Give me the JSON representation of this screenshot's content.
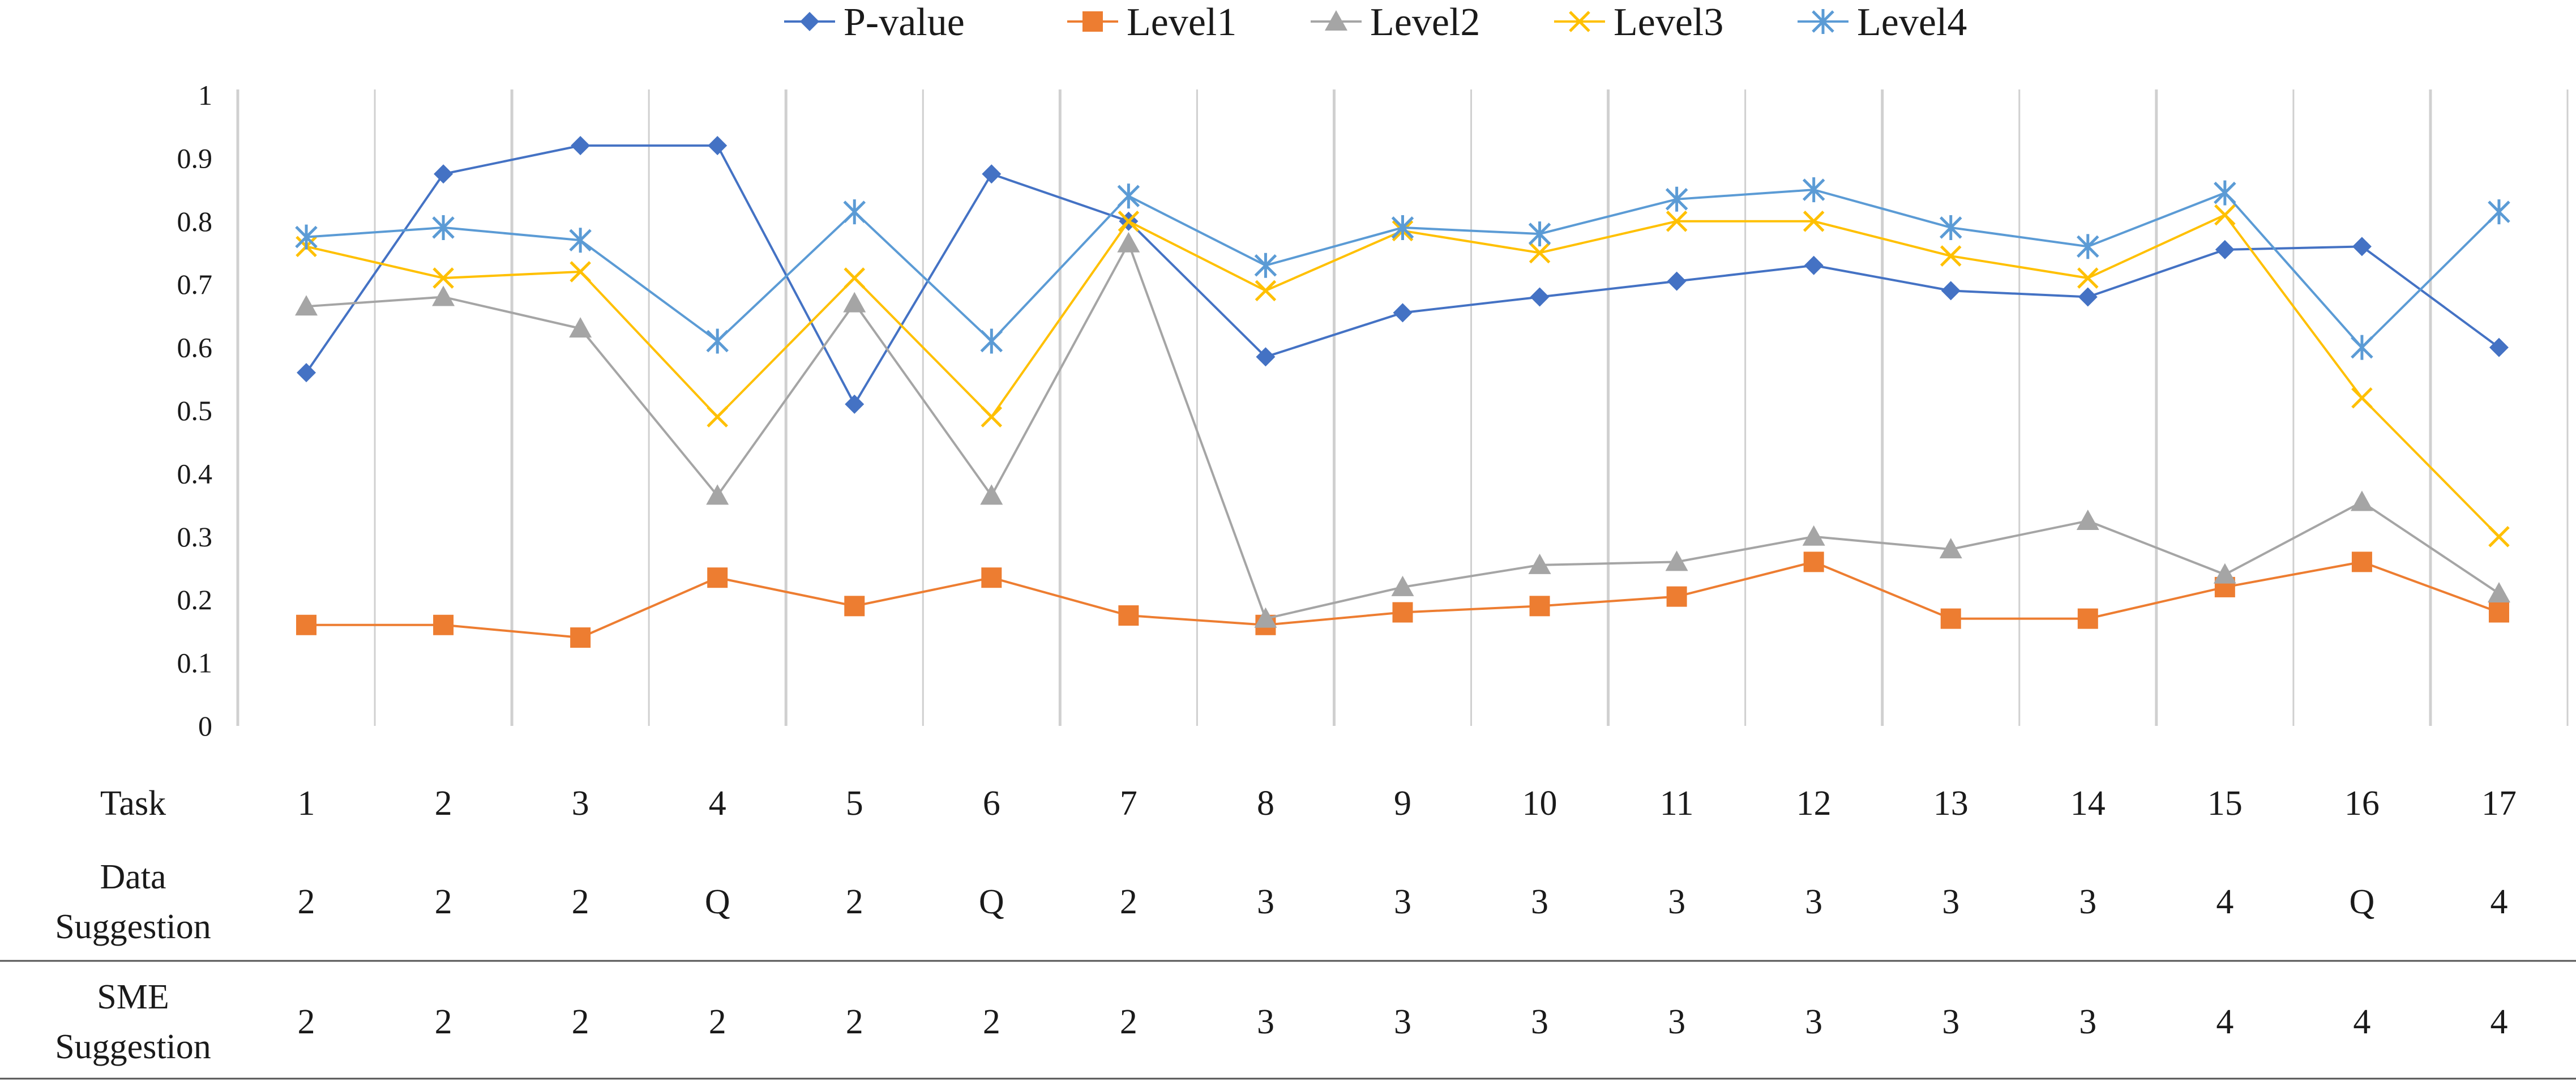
{
  "chart_data": {
    "type": "line",
    "title": "",
    "xlabel": "",
    "ylabel": "",
    "ylim": [
      0,
      1
    ],
    "yticks": [
      0,
      0.1,
      0.2,
      0.3,
      0.4,
      0.5,
      0.6,
      0.7,
      0.8,
      0.9,
      1
    ],
    "ytick_labels": [
      "0",
      "0.1",
      "0.2",
      "0.3",
      "0.4",
      "0.5",
      "0.6",
      "0.7",
      "0.8",
      "0.9",
      "1"
    ],
    "grid": "vertical",
    "legend_position": "top-center",
    "categories": [
      "1",
      "2",
      "3",
      "4",
      "5",
      "6",
      "7",
      "8",
      "9",
      "10",
      "11",
      "12",
      "13",
      "14",
      "15",
      "16",
      "17"
    ],
    "series": [
      {
        "name": "P-value",
        "color": "#4472c4",
        "marker": "diamond",
        "values": [
          0.56,
          0.875,
          0.92,
          0.92,
          0.51,
          0.875,
          0.8,
          0.585,
          0.655,
          0.68,
          0.705,
          0.73,
          0.69,
          0.68,
          0.755,
          0.76,
          0.6
        ]
      },
      {
        "name": "Level1",
        "color": "#ed7d31",
        "marker": "square",
        "values": [
          0.16,
          0.16,
          0.14,
          0.235,
          0.19,
          0.235,
          0.175,
          0.16,
          0.18,
          0.19,
          0.205,
          0.26,
          0.17,
          0.17,
          0.22,
          0.26,
          0.18
        ]
      },
      {
        "name": "Level2",
        "color": "#a5a5a5",
        "marker": "triangle",
        "values": [
          0.665,
          0.68,
          0.63,
          0.365,
          0.67,
          0.365,
          0.765,
          0.17,
          0.22,
          0.255,
          0.26,
          0.3,
          0.28,
          0.325,
          0.24,
          0.355,
          0.21
        ]
      },
      {
        "name": "Level3",
        "color": "#ffc000",
        "marker": "x",
        "values": [
          0.76,
          0.71,
          0.72,
          0.49,
          0.71,
          0.49,
          0.8,
          0.69,
          0.785,
          0.75,
          0.8,
          0.8,
          0.745,
          0.71,
          0.81,
          0.52,
          0.3
        ]
      },
      {
        "name": "Level4",
        "color": "#5b9bd5",
        "marker": "star",
        "values": [
          0.775,
          0.79,
          0.77,
          0.61,
          0.815,
          0.61,
          0.84,
          0.73,
          0.79,
          0.78,
          0.835,
          0.85,
          0.79,
          0.76,
          0.845,
          0.6,
          0.815
        ]
      }
    ],
    "table": {
      "rows": [
        {
          "label": "Task",
          "values": [
            "1",
            "2",
            "3",
            "4",
            "5",
            "6",
            "7",
            "8",
            "9",
            "10",
            "11",
            "12",
            "13",
            "14",
            "15",
            "16",
            "17"
          ]
        },
        {
          "label_lines": [
            "Data",
            "Suggestion"
          ],
          "values": [
            "2",
            "2",
            "2",
            "Q",
            "2",
            "Q",
            "2",
            "3",
            "3",
            "3",
            "3",
            "3",
            "3",
            "3",
            "4",
            "Q",
            "4"
          ]
        },
        {
          "label_lines": [
            "SME",
            "Suggestion"
          ],
          "values": [
            "2",
            "2",
            "2",
            "2",
            "2",
            "2",
            "2",
            "3",
            "3",
            "3",
            "3",
            "3",
            "3",
            "3",
            "4",
            "4",
            "4"
          ]
        }
      ]
    }
  }
}
